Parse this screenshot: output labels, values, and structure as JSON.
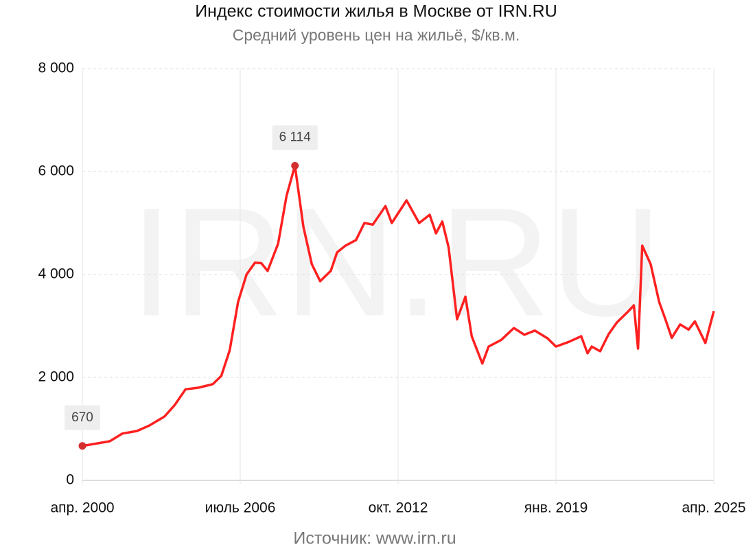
{
  "chart_data": {
    "type": "line",
    "title": "Индекс стоимости жилья в Москве от IRN.RU",
    "subtitle": "Средний уровень цен на жильё, $/кв.м.",
    "source": "Источник: www.irn.ru",
    "watermark": "IRN.RU",
    "x": [
      "2000-04",
      "2001-05",
      "2001-11",
      "2002-06",
      "2002-12",
      "2003-07",
      "2003-12",
      "2004-05",
      "2004-11",
      "2005-06",
      "2005-10",
      "2006-02",
      "2006-06",
      "2006-10",
      "2007-02",
      "2007-05",
      "2007-08",
      "2008-01",
      "2008-05",
      "2008-09",
      "2009-01",
      "2009-05",
      "2009-09",
      "2010-02",
      "2010-05",
      "2010-09",
      "2011-02",
      "2011-06",
      "2011-10",
      "2012-04",
      "2012-07",
      "2013-02",
      "2013-08",
      "2014-01",
      "2014-04",
      "2014-07",
      "2014-10",
      "2015-02",
      "2015-06",
      "2015-09",
      "2016-02",
      "2016-05",
      "2016-11",
      "2017-05",
      "2017-10",
      "2018-03",
      "2018-09",
      "2019-01",
      "2019-07",
      "2020-01",
      "2020-04",
      "2020-06",
      "2020-10",
      "2021-02",
      "2021-06",
      "2021-11",
      "2022-02",
      "2022-04",
      "2022-06",
      "2022-10",
      "2023-02",
      "2023-05",
      "2023-08",
      "2023-12",
      "2024-04",
      "2024-07",
      "2024-12",
      "2025-04"
    ],
    "series": [
      {
        "name": "Индекс",
        "color": "#ff2020",
        "values": [
          670,
          760,
          910,
          960,
          1070,
          1240,
          1470,
          1770,
          1800,
          1870,
          2030,
          2530,
          3470,
          4000,
          4230,
          4220,
          4070,
          4600,
          5530,
          6114,
          4930,
          4200,
          3870,
          4070,
          4430,
          4560,
          4670,
          5000,
          4970,
          5330,
          5000,
          5440,
          5000,
          5160,
          4800,
          5030,
          4530,
          3130,
          3570,
          2800,
          2270,
          2600,
          2730,
          2960,
          2830,
          2910,
          2760,
          2600,
          2690,
          2800,
          2470,
          2600,
          2510,
          2840,
          3070,
          3270,
          3400,
          2560,
          4560,
          4200,
          3470,
          3130,
          2770,
          3030,
          2930,
          3090,
          2670,
          3290
        ],
        "value_labels": [
          "670",
          null,
          null,
          null,
          null,
          null,
          null,
          null,
          null,
          null,
          null,
          null,
          null,
          null,
          null,
          null,
          null,
          null,
          null,
          "6 114",
          null,
          null,
          null,
          null,
          null,
          null,
          null,
          null,
          null,
          null,
          null,
          null,
          null,
          null,
          null,
          null,
          null,
          null,
          null,
          null,
          null,
          null,
          null,
          null,
          null,
          null,
          null,
          null,
          null,
          null,
          null,
          null,
          null,
          null,
          null,
          null,
          null,
          null,
          null,
          null,
          null,
          null,
          null,
          null,
          null,
          null,
          null,
          null
        ]
      }
    ],
    "xlim": [
      "2000-04",
      "2025-04"
    ],
    "xticks": [
      {
        "value": "2000-04",
        "label": "апр. 2000"
      },
      {
        "value": "2006-07",
        "label": "июль 2006"
      },
      {
        "value": "2012-10",
        "label": "окт. 2012"
      },
      {
        "value": "2019-01",
        "label": "янв. 2019"
      },
      {
        "value": "2025-04",
        "label": "апр. 2025"
      }
    ],
    "ylim": [
      0,
      8000
    ],
    "yticks": [
      0,
      {
        "value": 2000,
        "label": "2 000"
      },
      {
        "value": 4000,
        "label": "4 000"
      },
      {
        "value": 6000,
        "label": "6 000"
      },
      {
        "value": 8000,
        "label": "8 000"
      }
    ],
    "grid": true
  }
}
